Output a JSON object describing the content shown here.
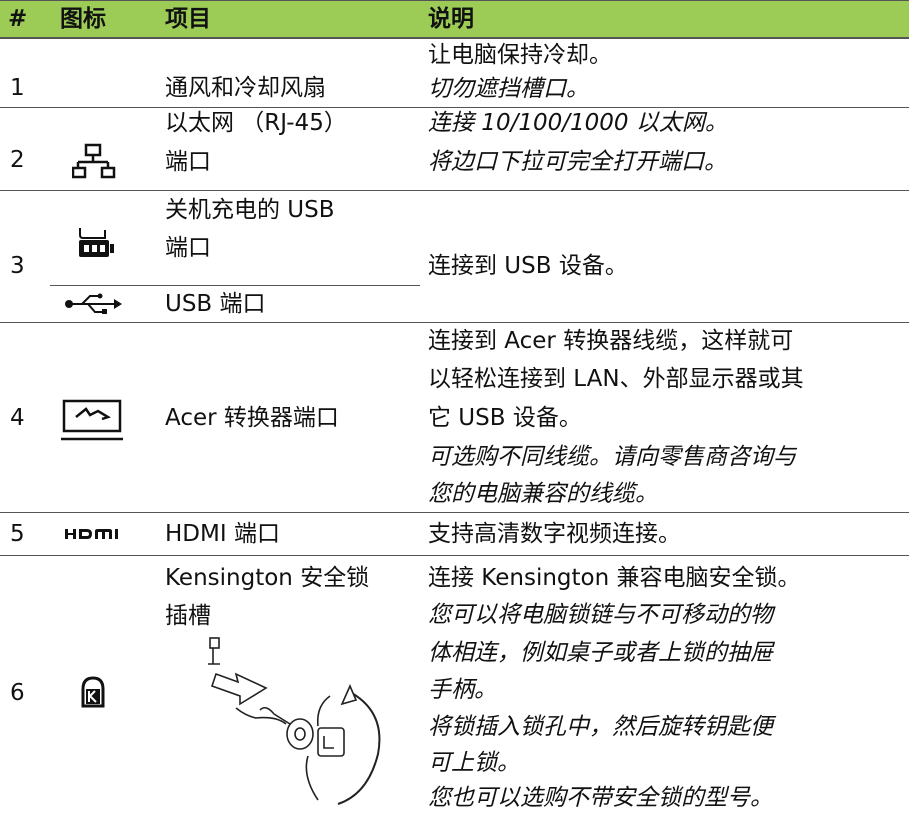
{
  "table": {
    "headers": [
      "#",
      "图标",
      "项目",
      "说明"
    ],
    "rows": [
      {
        "number": "1",
        "item": [
          "通风和冷却风扇"
        ],
        "description": [
          "让电脑保持冷却。",
          "切勿遮挡槽口。"
        ]
      },
      {
        "number": "2",
        "item": [
          "以太网 （RJ-45）",
          "端口"
        ],
        "description": [
          "连接 10/100/1000 以太网。",
          "将边口下拉可完全打开端口。"
        ]
      },
      {
        "number": "3",
        "item": [
          "关机充电的 USB",
          "端口"
        ],
        "sub_item": [
          "USB 端口"
        ],
        "description": [
          "连接到 USB 设备。"
        ]
      },
      {
        "number": "4",
        "item": [
          "Acer 转换器端口"
        ],
        "description": [
          "连接到 Acer 转换器线缆，这样就可",
          "以轻松连接到 LAN、外部显示器或其",
          "它 USB 设备。",
          "可选购不同线缆。请向零售商咨询与",
          "您的电脑兼容的线缆。"
        ]
      },
      {
        "number": "5",
        "item": [
          "HDMI 端口"
        ],
        "description": [
          "支持高清数字视频连接。"
        ]
      },
      {
        "number": "6",
        "item": [
          "Kensington 安全锁",
          "插槽"
        ],
        "description": [
          "连接 Kensington 兼容电脑安全锁。",
          "您可以将电脑锁链与不可移动的物",
          "体相连，例如桌子或者上锁的抽屉",
          "手柄。",
          "将锁插入锁孔中，然后旋转钥匙便",
          "可上锁。",
          "您也可以选购不带安全锁的型号。"
        ]
      }
    ]
  }
}
